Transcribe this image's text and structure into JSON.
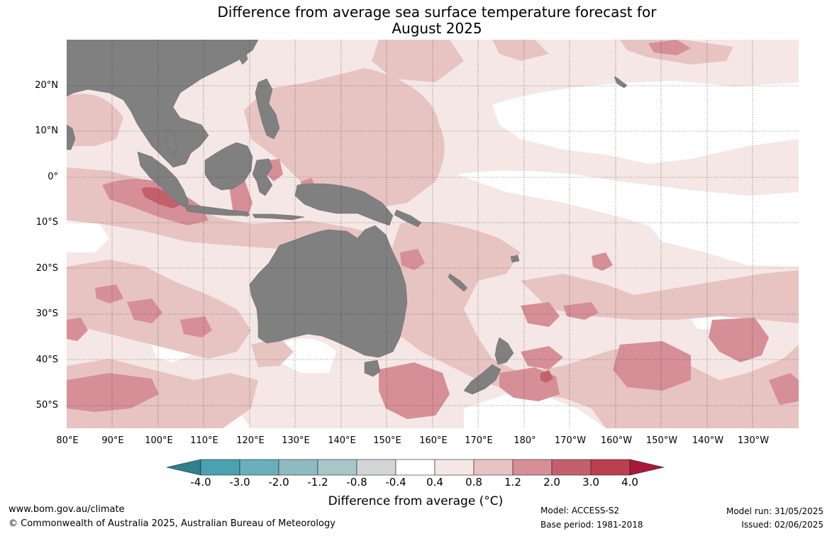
{
  "title_line1": "Difference from average sea surface temperature forecast for",
  "title_line2": "August 2025",
  "lat_labels": [
    "20°N",
    "10°N",
    "0°",
    "10°S",
    "20°S",
    "30°S",
    "40°S",
    "50°S"
  ],
  "lon_labels": [
    "80°E",
    "90°E",
    "100°E",
    "110°E",
    "120°E",
    "130°E",
    "140°E",
    "150°E",
    "160°E",
    "170°E",
    "180°",
    "170°W",
    "160°W",
    "150°W",
    "140°W",
    "130°W"
  ],
  "colorbar": {
    "ticks": [
      "-4.0",
      "-3.0",
      "-2.0",
      "-1.2",
      "-0.8",
      "-0.4",
      "0.4",
      "0.8",
      "1.2",
      "2.0",
      "3.0",
      "4.0"
    ],
    "colors": [
      "#2f7f8c",
      "#4aa1b1",
      "#6aaebb",
      "#8ebac1",
      "#a8c6c8",
      "#d2d5d6",
      "#ffffff",
      "#f5e7e6",
      "#e7c4c2",
      "#d68f97",
      "#c4606c",
      "#bb3f4d",
      "#a9183a"
    ],
    "label": "Difference from average (°C)"
  },
  "map_colors": {
    "land": "#808080",
    "anom_04_08": "#f5e7e6",
    "anom_08_12": "#e7c4c2",
    "anom_12_20": "#d68f97",
    "anom_20_30": "#c4606c"
  },
  "footer": {
    "website": "www.bom.gov.au/climate",
    "copyright": "© Commonwealth of Australia 2025, Australian Bureau of Meteorology",
    "model": "Model: ACCESS-S2",
    "base_period": "Base period: 1981-2018",
    "model_run": "Model run: 31/05/2025",
    "issued": "Issued: 02/06/2025"
  }
}
